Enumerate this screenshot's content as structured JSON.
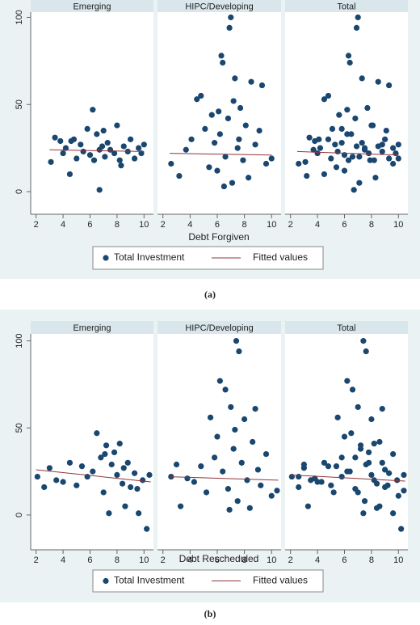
{
  "chart_data": [
    {
      "type": "scatter",
      "caption": "(a)",
      "xlabel": "Debt Forgiven",
      "xlim": [
        1.6,
        10.7
      ],
      "xticks": [
        2,
        4,
        6,
        8,
        10
      ],
      "ylim": [
        -13,
        103
      ],
      "yticks": [
        0,
        50,
        100
      ],
      "series": [
        {
          "name": "Total Investment",
          "color": "#1a476f"
        },
        {
          "name": "Fitted values",
          "color": "#90353b"
        }
      ],
      "panels": [
        {
          "title": "Emerging",
          "x": [
            3.1,
            3.4,
            3.8,
            4.0,
            4.2,
            4.5,
            4.8,
            5.0,
            5.3,
            5.5,
            5.8,
            6.0,
            6.2,
            6.3,
            6.5,
            6.7,
            6.9,
            7.1,
            7.3,
            7.5,
            7.8,
            8.0,
            8.2,
            8.5,
            8.8,
            9.0,
            9.3,
            9.6,
            9.8,
            10.0,
            6.7,
            4.6,
            7.0,
            8.3
          ],
          "y": [
            17,
            31,
            29,
            22,
            25,
            10,
            30,
            19,
            27,
            23,
            36,
            21,
            47,
            18,
            33,
            1,
            26,
            20,
            28,
            24,
            22,
            38,
            18,
            26,
            23,
            30,
            19,
            25,
            22,
            27,
            24,
            29,
            35,
            15
          ],
          "fit_x": [
            3,
            10
          ],
          "fit_y": [
            24,
            23
          ]
        },
        {
          "title": "HIPC/Developing",
          "x": [
            2.6,
            3.2,
            3.7,
            4.1,
            4.5,
            4.8,
            5.1,
            5.4,
            5.6,
            5.8,
            6.0,
            6.2,
            6.3,
            6.4,
            6.6,
            6.8,
            6.9,
            7.0,
            7.1,
            7.3,
            7.5,
            7.7,
            7.9,
            8.1,
            8.3,
            8.5,
            8.8,
            9.1,
            9.3,
            9.6,
            10.0,
            6.5,
            7.2,
            6.1,
            7.6
          ],
          "y": [
            16,
            9,
            24,
            30,
            53,
            55,
            36,
            14,
            44,
            28,
            12,
            33,
            78,
            74,
            20,
            42,
            94,
            100,
            5,
            65,
            25,
            48,
            18,
            38,
            8,
            63,
            27,
            35,
            61,
            16,
            19,
            3,
            52,
            46,
            30
          ],
          "fit_x": [
            2.5,
            10
          ],
          "fit_y": [
            22,
            21
          ]
        },
        {
          "title": "Total",
          "x": [
            3.1,
            3.4,
            3.8,
            4.0,
            4.2,
            4.5,
            4.8,
            5.0,
            5.3,
            5.5,
            5.8,
            6.0,
            6.2,
            6.3,
            6.5,
            6.7,
            6.9,
            7.1,
            7.3,
            7.5,
            7.8,
            8.0,
            8.2,
            8.5,
            8.8,
            9.0,
            9.3,
            9.6,
            9.8,
            10.0,
            2.6,
            3.2,
            3.7,
            4.1,
            4.5,
            4.8,
            5.1,
            5.4,
            5.6,
            5.8,
            6.0,
            6.2,
            6.3,
            6.4,
            6.6,
            6.8,
            6.9,
            7.0,
            7.1,
            7.3,
            7.5,
            7.7,
            7.9,
            8.1,
            8.3,
            8.5,
            8.8,
            9.1,
            9.3,
            9.6,
            10.0
          ],
          "y": [
            17,
            31,
            29,
            22,
            25,
            10,
            30,
            19,
            27,
            23,
            36,
            21,
            47,
            18,
            33,
            1,
            26,
            20,
            28,
            24,
            22,
            38,
            18,
            26,
            23,
            30,
            19,
            25,
            22,
            27,
            16,
            9,
            24,
            30,
            53,
            55,
            36,
            14,
            44,
            28,
            12,
            33,
            78,
            74,
            20,
            42,
            94,
            100,
            5,
            65,
            25,
            48,
            18,
            38,
            8,
            63,
            27,
            35,
            61,
            16,
            19
          ],
          "fit_x": [
            2.5,
            10
          ],
          "fit_y": [
            23,
            21
          ]
        }
      ]
    },
    {
      "type": "scatter",
      "caption": "(b)",
      "xlabel": "Debt Rescheduled",
      "xlim": [
        1.6,
        10.7
      ],
      "xticks": [
        2,
        4,
        6,
        8,
        10
      ],
      "ylim": [
        -20,
        104
      ],
      "yticks": [
        0,
        50,
        100
      ],
      "series": [
        {
          "name": "Total Investment",
          "color": "#1a476f"
        },
        {
          "name": "Fitted values",
          "color": "#90353b"
        }
      ],
      "panels": [
        {
          "title": "Emerging",
          "x": [
            2.1,
            2.6,
            3.0,
            3.5,
            4.0,
            4.5,
            5.0,
            5.4,
            5.8,
            6.2,
            6.5,
            6.8,
            7.0,
            7.2,
            7.4,
            7.6,
            7.8,
            8.0,
            8.2,
            8.4,
            8.6,
            8.8,
            9.0,
            9.3,
            9.6,
            9.9,
            10.2,
            10.4,
            7.1,
            8.5,
            9.5
          ],
          "y": [
            22,
            16,
            27,
            20,
            19,
            30,
            17,
            28,
            22,
            25,
            47,
            33,
            13,
            40,
            1,
            29,
            36,
            23,
            41,
            18,
            5,
            30,
            16,
            24,
            1,
            20,
            -8,
            23,
            35,
            27,
            15
          ],
          "fit_x": [
            2,
            10.5
          ],
          "fit_y": [
            26,
            19
          ]
        },
        {
          "title": "HIPC/Developing",
          "x": [
            2.6,
            3.0,
            3.3,
            3.8,
            4.3,
            4.8,
            5.2,
            5.5,
            5.8,
            6.0,
            6.2,
            6.4,
            6.6,
            6.8,
            7.0,
            7.2,
            7.4,
            7.5,
            7.6,
            7.8,
            8.0,
            8.2,
            8.4,
            8.6,
            8.8,
            9.0,
            9.2,
            9.6,
            10.0,
            10.4,
            7.3,
            6.9
          ],
          "y": [
            22,
            29,
            5,
            21,
            19,
            28,
            13,
            56,
            33,
            45,
            77,
            25,
            72,
            15,
            62,
            38,
            100,
            8,
            94,
            30,
            55,
            20,
            4,
            42,
            61,
            26,
            17,
            35,
            11,
            14,
            49,
            3
          ],
          "fit_x": [
            2.5,
            10.5
          ],
          "fit_y": [
            22,
            20
          ]
        },
        {
          "title": "Total",
          "x": [
            2.1,
            2.6,
            3.0,
            3.5,
            4.0,
            4.5,
            5.0,
            5.4,
            5.8,
            6.2,
            6.5,
            6.8,
            7.0,
            7.2,
            7.4,
            7.6,
            7.8,
            8.0,
            8.2,
            8.4,
            8.6,
            8.8,
            9.0,
            9.3,
            9.6,
            9.9,
            10.2,
            10.4,
            2.6,
            3.0,
            3.3,
            3.8,
            4.3,
            4.8,
            5.2,
            5.5,
            5.8,
            6.0,
            6.2,
            6.4,
            6.6,
            6.8,
            7.0,
            7.2,
            7.4,
            7.5,
            7.6,
            7.8,
            8.0,
            8.2,
            8.4,
            8.6,
            8.8,
            9.0,
            9.2,
            9.6,
            10.0,
            10.4
          ],
          "y": [
            22,
            16,
            27,
            20,
            19,
            30,
            17,
            28,
            22,
            25,
            47,
            33,
            13,
            40,
            1,
            29,
            36,
            23,
            41,
            18,
            5,
            30,
            16,
            24,
            1,
            20,
            -8,
            23,
            22,
            29,
            5,
            21,
            19,
            28,
            13,
            56,
            33,
            45,
            77,
            25,
            72,
            15,
            62,
            38,
            100,
            8,
            94,
            30,
            55,
            20,
            4,
            42,
            61,
            26,
            17,
            35,
            11,
            14
          ],
          "fit_x": [
            2,
            10.5
          ],
          "fit_y": [
            23,
            19.5
          ]
        }
      ]
    }
  ]
}
